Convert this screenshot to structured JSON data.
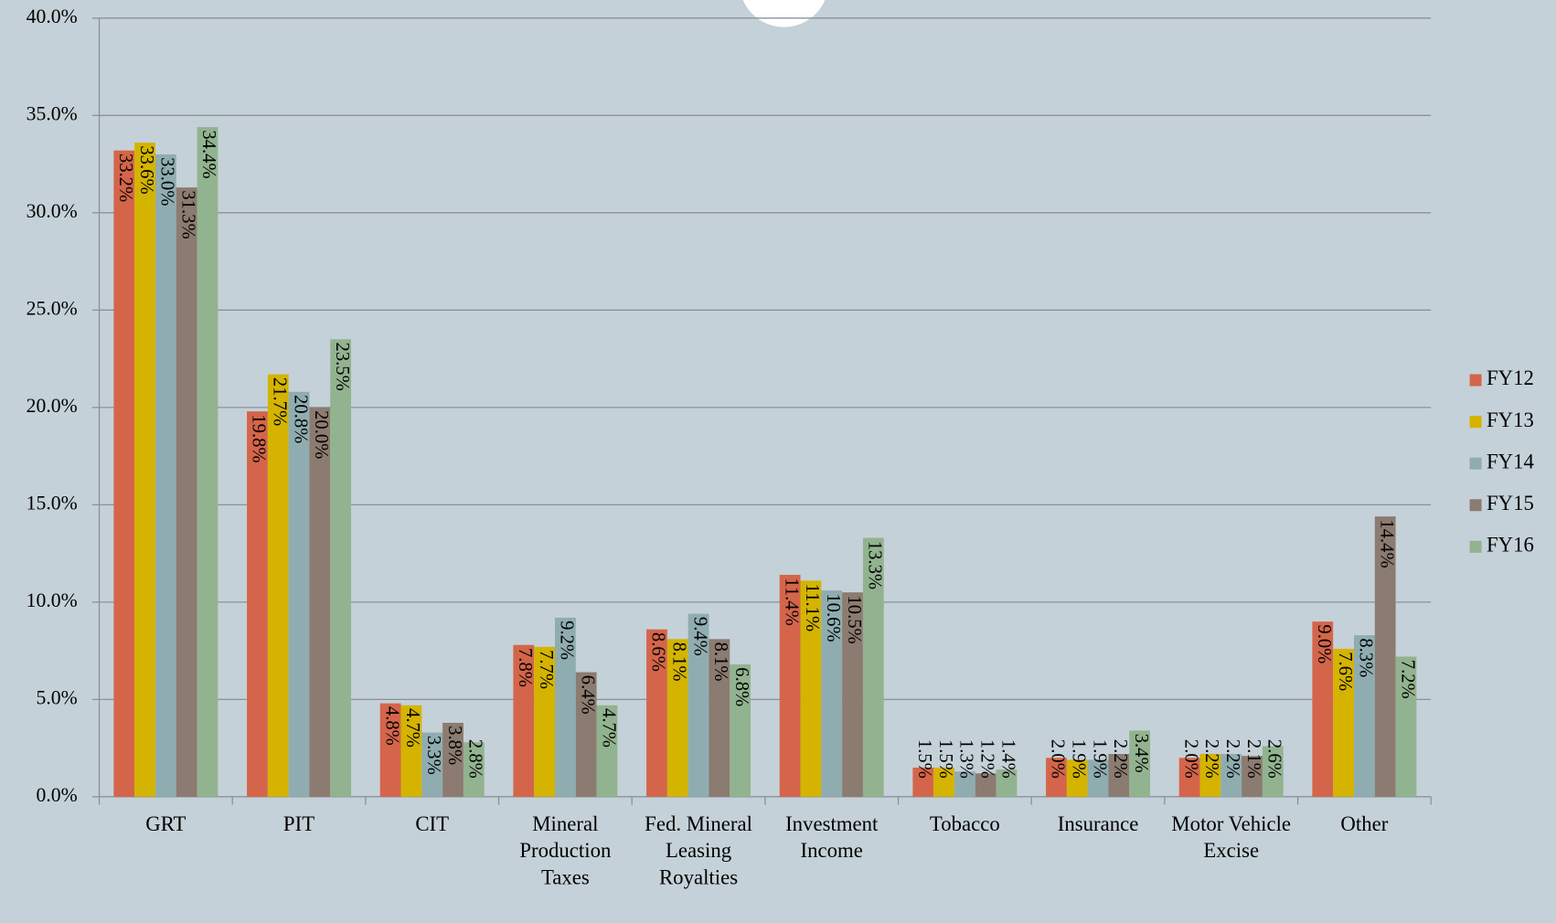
{
  "chart_data": {
    "type": "bar",
    "categories": [
      "GRT",
      "PIT",
      "CIT",
      "Mineral Production Taxes",
      "Fed. Mineral Leasing Royalties",
      "Investment Income",
      "Tobacco",
      "Insurance",
      "Motor Vehicle Excise",
      "Other"
    ],
    "series": [
      {
        "name": "FY12",
        "color": "#d4654a",
        "values": [
          33.2,
          19.8,
          4.8,
          7.8,
          8.6,
          11.4,
          1.5,
          2.0,
          2.0,
          9.0
        ],
        "value_labels": [
          "33.2%",
          "19.8%",
          "4.8%",
          "7.8%",
          "8.6%",
          "11.4%",
          "1.5%",
          "2.0%",
          "2.0%",
          "9.0%"
        ]
      },
      {
        "name": "FY13",
        "color": "#d4b400",
        "values": [
          33.6,
          21.7,
          4.7,
          7.7,
          8.1,
          11.1,
          1.5,
          1.9,
          2.2,
          7.6
        ],
        "value_labels": [
          "33.6%",
          "21.7%",
          "4.7%",
          "7.7%",
          "8.1%",
          "11.1%",
          "1.5%",
          "1.9%",
          "2.2%",
          "7.6%"
        ]
      },
      {
        "name": "FY14",
        "color": "#8fadb0",
        "values": [
          33.0,
          20.8,
          3.3,
          9.2,
          9.4,
          10.6,
          1.3,
          1.9,
          2.2,
          8.3
        ],
        "value_labels": [
          "33.0%",
          "20.8%",
          "3.3%",
          "9.2%",
          "9.4%",
          "10.6%",
          "1.3%",
          "1.9%",
          "2.2%",
          "8.3%"
        ]
      },
      {
        "name": "FY15",
        "color": "#8c7b70",
        "values": [
          31.3,
          20.0,
          3.8,
          6.4,
          8.1,
          10.5,
          1.2,
          2.2,
          2.1,
          14.4
        ],
        "value_labels": [
          "31.3%",
          "20.0%",
          "3.8%",
          "6.4%",
          "8.1%",
          "10.5%",
          "1.2%",
          "2.2%",
          "2.1%",
          "14.4%"
        ]
      },
      {
        "name": "FY16",
        "color": "#92b38f",
        "values": [
          34.4,
          23.5,
          2.8,
          4.7,
          6.8,
          13.3,
          1.4,
          3.4,
          2.6,
          7.2
        ],
        "value_labels": [
          "34.4%",
          "23.5%",
          "2.8%",
          "4.7%",
          "6.8%",
          "13.3%",
          "1.4%",
          "3.4%",
          "2.6%",
          "7.2%"
        ]
      }
    ],
    "ylim": [
      0,
      40
    ],
    "yticks": [
      {
        "value": 0,
        "label": "0.0%"
      },
      {
        "value": 5,
        "label": "5.0%"
      },
      {
        "value": 10,
        "label": "10.0%"
      },
      {
        "value": 15,
        "label": "15.0%"
      },
      {
        "value": 20,
        "label": "20.0%"
      },
      {
        "value": 25,
        "label": "25.0%"
      },
      {
        "value": 30,
        "label": "30.0%"
      },
      {
        "value": 35,
        "label": "35.0%"
      },
      {
        "value": 40,
        "label": "40.0%"
      }
    ],
    "grid": true,
    "legend": "right"
  }
}
